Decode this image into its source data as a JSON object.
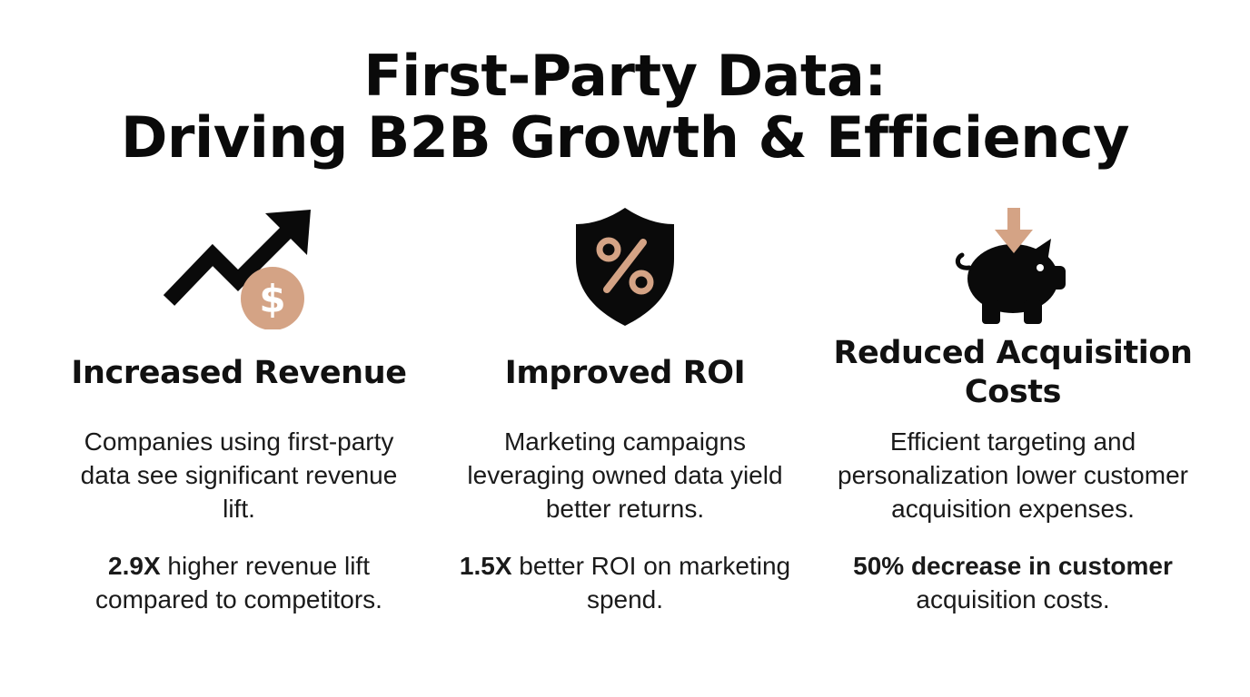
{
  "title": {
    "line1": "First-Party Data:",
    "line2": "Driving B2B Growth & Efficiency"
  },
  "colors": {
    "accent": "#d4a385",
    "ink": "#0a0a0a"
  },
  "columns": [
    {
      "icon": "trending-up-dollar-icon",
      "heading": "Increased Revenue",
      "description": "Companies using first-party data see significant revenue lift.",
      "stat_bold": "2.9X",
      "stat_rest": " higher revenue lift compared to competitors."
    },
    {
      "icon": "shield-percent-icon",
      "heading": "Improved ROI",
      "description": "Marketing campaigns leveraging owned data yield better returns.",
      "stat_bold": "1.5X",
      "stat_rest": " better ROI on marketing spend."
    },
    {
      "icon": "piggy-bank-down-arrow-icon",
      "heading": "Reduced Acquisition Costs",
      "description": "Efficient targeting and personalization lower customer acquisition expenses.",
      "stat_bold": "50% decrease in customer",
      "stat_rest": " acquisition costs."
    }
  ]
}
